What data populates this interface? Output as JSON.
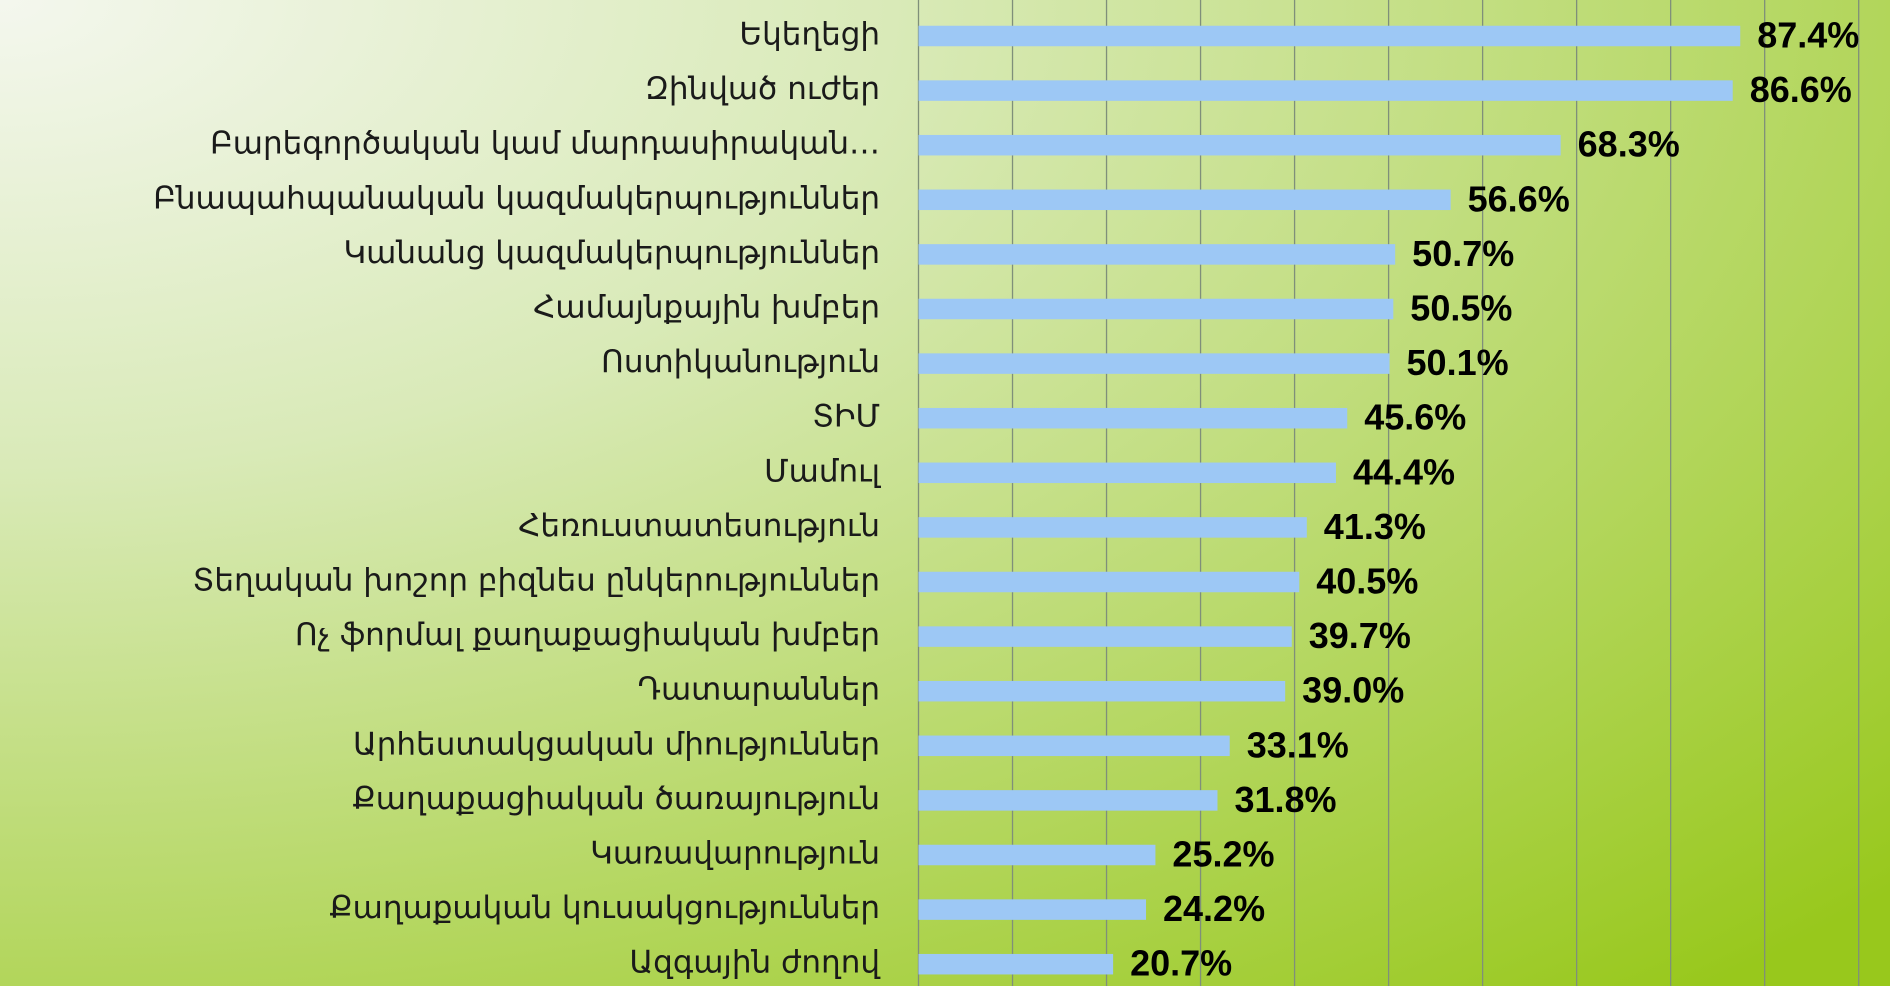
{
  "chart_data": {
    "type": "bar",
    "orientation": "horizontal",
    "categories": [
      "Եկեղեցի",
      "Զինված ուժեր",
      "Բարեգործական կամ մարդասիրական…",
      "Բնապահպանական կազմակերպություններ",
      "Կանանց կազմակերպություններ",
      "Համայնքային խմբեր",
      "Ոստիկանություն",
      "ՏԻՄ",
      "Մամուլ",
      "Հեռուստատեսություն",
      "Տեղական խոշոր բիզնես ընկերություններ",
      "Ոչ ֆորմալ քաղաքացիական խմբեր",
      "Դատարաններ",
      "Արհեստակցական միություններ",
      "Քաղաքացիական ծառայություն",
      "Կառավարություն",
      "Քաղաքական կուսակցություններ",
      "Ազգային ժողով"
    ],
    "values": [
      87.4,
      86.6,
      68.3,
      56.6,
      50.7,
      50.5,
      50.1,
      45.6,
      44.4,
      41.3,
      40.5,
      39.7,
      39.0,
      33.1,
      31.8,
      25.2,
      24.2,
      20.7
    ],
    "value_labels": [
      "87.4%",
      "86.6%",
      "68.3%",
      "56.6%",
      "50.7%",
      "50.5%",
      "50.1%",
      "45.6%",
      "44.4%",
      "41.3%",
      "40.5%",
      "39.7%",
      "39.0%",
      "33.1%",
      "31.8%",
      "25.2%",
      "24.2%",
      "20.7%"
    ],
    "color": "#9dc8f5",
    "xlim": [
      0,
      100
    ],
    "xticks": [
      0,
      10,
      20,
      30,
      40,
      50,
      60,
      70,
      80,
      90,
      100
    ],
    "grid": true
  }
}
